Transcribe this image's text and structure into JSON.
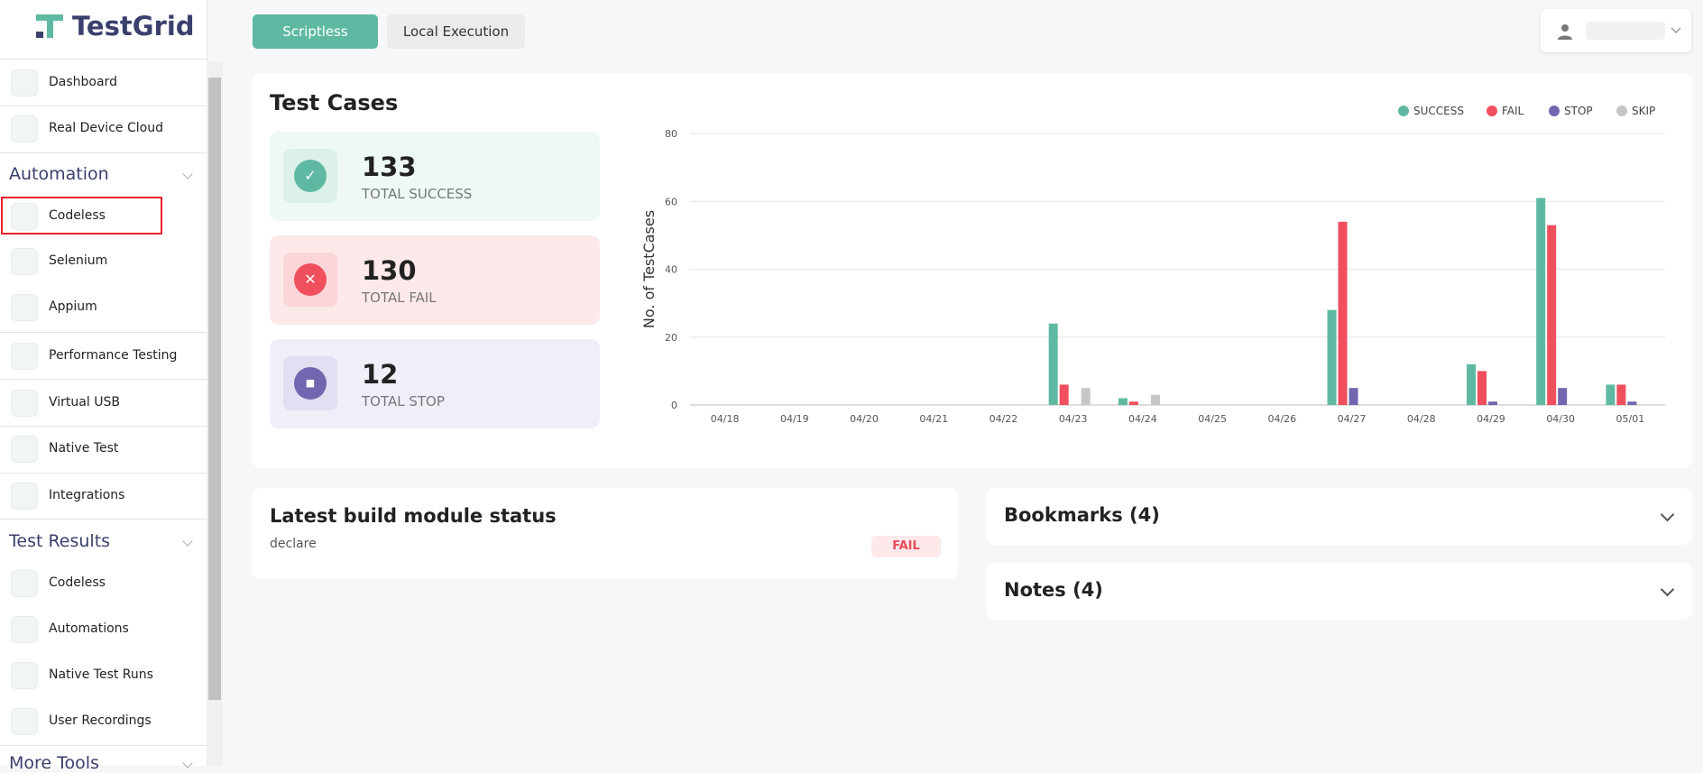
{
  "brand": "TestGrid",
  "tabs": [
    "Scriptless",
    "Local Execution"
  ],
  "sidebar": {
    "top": [
      "Dashboard",
      "Real Device Cloud"
    ],
    "sections": [
      {
        "title": "Automation",
        "items": [
          "Codeless",
          "Selenium",
          "Appium",
          "Performance Testing",
          "Virtual USB",
          "Native Test",
          "Integrations"
        ]
      },
      {
        "title": "Test Results",
        "items": [
          "Codeless",
          "Automations",
          "Native Test Runs",
          "User Recordings"
        ]
      },
      {
        "title": "More Tools"
      }
    ]
  },
  "test_cases": {
    "title": "Test Cases",
    "stats": [
      {
        "value": 133,
        "label": "TOTAL SUCCESS"
      },
      {
        "value": 130,
        "label": "TOTAL FAIL"
      },
      {
        "value": 12,
        "label": "TOTAL STOP"
      }
    ]
  },
  "chart_data": {
    "type": "bar",
    "y_label": "No. of TestCases",
    "categories": [
      "04/18",
      "04/19",
      "04/20",
      "04/21",
      "04/22",
      "04/23",
      "04/24",
      "04/25",
      "04/26",
      "04/27",
      "04/28",
      "04/29",
      "04/30",
      "05/01"
    ],
    "series": [
      {
        "name": "SUCCESS",
        "color": "#5fb9a2",
        "values": [
          0,
          0,
          0,
          0,
          0,
          24,
          2,
          0,
          0,
          28,
          0,
          12,
          61,
          6
        ]
      },
      {
        "name": "FAIL",
        "color": "#f04f5d",
        "values": [
          0,
          0,
          0,
          0,
          0,
          6,
          1,
          0,
          0,
          54,
          0,
          10,
          53,
          6
        ]
      },
      {
        "name": "STOP",
        "color": "#7167b0",
        "values": [
          0,
          0,
          0,
          0,
          0,
          0,
          0,
          0,
          0,
          5,
          0,
          1,
          5,
          1
        ]
      },
      {
        "name": "SKIP",
        "color": "#c6c6c6",
        "values": [
          0,
          0,
          0,
          0,
          0,
          5,
          3,
          0,
          0,
          0,
          0,
          0,
          0,
          0
        ]
      }
    ],
    "ylim": [
      0,
      80
    ],
    "yticks": [
      0,
      20,
      40,
      60,
      80
    ],
    "grid": true,
    "legend": "top-right"
  },
  "latest_build": {
    "title": "Latest build module status",
    "module": "declare",
    "status": "FAIL"
  },
  "panels": [
    "Bookmarks (4)",
    "Notes (4)"
  ]
}
